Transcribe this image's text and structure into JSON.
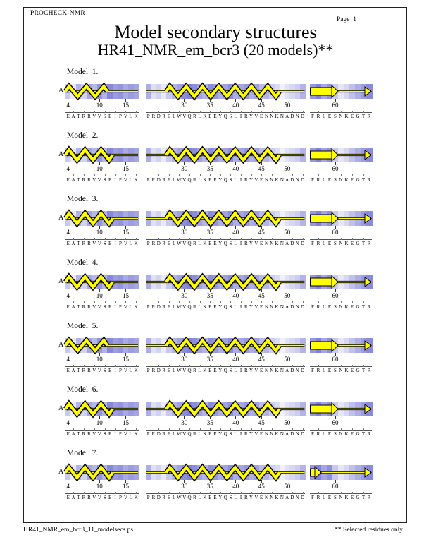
{
  "page": {
    "app": "PROCHECK-NMR",
    "page_label": "Page  1",
    "title": "Model secondary structures",
    "subtitle": "HR41_NMR_em_bcr3 (20 models)**",
    "footer_file": "HR41_NMR_em_bcr3_11_modelsecs.ps",
    "footer_note": "** Selected residues only"
  },
  "colors": {
    "structure_fill": "#ffff00",
    "structure_outline": "#000000",
    "cell_dark": "#4b4bc8",
    "cell_light": "#ffffff"
  },
  "segments": [
    {
      "first_res": 4,
      "last_res": 17,
      "ticks": [
        4,
        10,
        15
      ],
      "sequence": "EATRRVVSEIPVLK",
      "shades": [
        0.3,
        0.12,
        0.42,
        0.25,
        0.5,
        0.4,
        0.6,
        0.42,
        0.66,
        0.55,
        0.6,
        0.48,
        0.55,
        0.5
      ]
    },
    {
      "first_res": 23,
      "last_res": 53,
      "ticks": [
        30,
        35,
        40,
        45,
        50
      ],
      "sequence": "PRDRELWVQRLKEEYQSLIRYVENNKNADND",
      "shades": [
        0.45,
        0.18,
        0.25,
        0.12,
        0.3,
        0.42,
        0.52,
        0.64,
        0.7,
        0.64,
        0.52,
        0.42,
        0.64,
        0.58,
        0.45,
        0.52,
        0.64,
        0.45,
        0.5,
        0.58,
        0.45,
        0.52,
        0.38,
        0.42,
        0.28,
        0.2,
        0.08,
        0.16,
        0.22,
        0.28,
        0.42
      ]
    },
    {
      "first_res": 56,
      "last_res": 66,
      "ticks": [
        60
      ],
      "sequence": "FRLESNKEGTR",
      "shades": [
        0.58,
        0.7,
        0.5,
        0.62,
        0.3,
        0.14,
        0.22,
        0.35,
        0.45,
        0.55,
        0.65
      ]
    }
  ],
  "models": [
    {
      "label": "Model  1.",
      "chain": "A",
      "structures": [
        {
          "helix": [
            4,
            11
          ]
        },
        {
          "helix": [
            27,
            48
          ]
        },
        {
          "strand": [
            56,
            60
          ],
          "end_arrow": true
        }
      ]
    },
    {
      "label": "Model  2.",
      "chain": "A",
      "structures": [
        {
          "helix": [
            4,
            12
          ]
        },
        {
          "helix": [
            27,
            48
          ]
        },
        {
          "strand": [
            56,
            60
          ],
          "end_arrow": true
        }
      ]
    },
    {
      "label": "Model  3.",
      "chain": "A",
      "structures": [
        {
          "helix": [
            4,
            12
          ]
        },
        {
          "helix": [
            27,
            48
          ]
        },
        {
          "strand": [
            56,
            60
          ],
          "end_arrow": true
        }
      ]
    },
    {
      "label": "Model  4.",
      "chain": "A",
      "structures": [
        {
          "helix": [
            4,
            12
          ]
        },
        {
          "helix": [
            27,
            48
          ]
        },
        {
          "strand": [
            56,
            60
          ],
          "end_arrow": true
        }
      ]
    },
    {
      "label": "Model  5.",
      "chain": "A",
      "structures": [
        {
          "helix": [
            4,
            11
          ]
        },
        {
          "helix": [
            27,
            48
          ]
        },
        {
          "strand": [
            56,
            60
          ],
          "end_arrow": true
        }
      ]
    },
    {
      "label": "Model  6.",
      "chain": "A",
      "structures": [
        {
          "helix": [
            4,
            12
          ]
        },
        {
          "helix": [
            27,
            48
          ]
        },
        {
          "strand": [
            56,
            60
          ],
          "end_arrow": true
        }
      ]
    },
    {
      "label": "Model  7.",
      "chain": "A",
      "structures": [
        {
          "helix": [
            4,
            12
          ]
        },
        {
          "helix": [
            27,
            48
          ]
        },
        {
          "strand": [
            56,
            57
          ],
          "end_arrow": true
        }
      ]
    }
  ]
}
